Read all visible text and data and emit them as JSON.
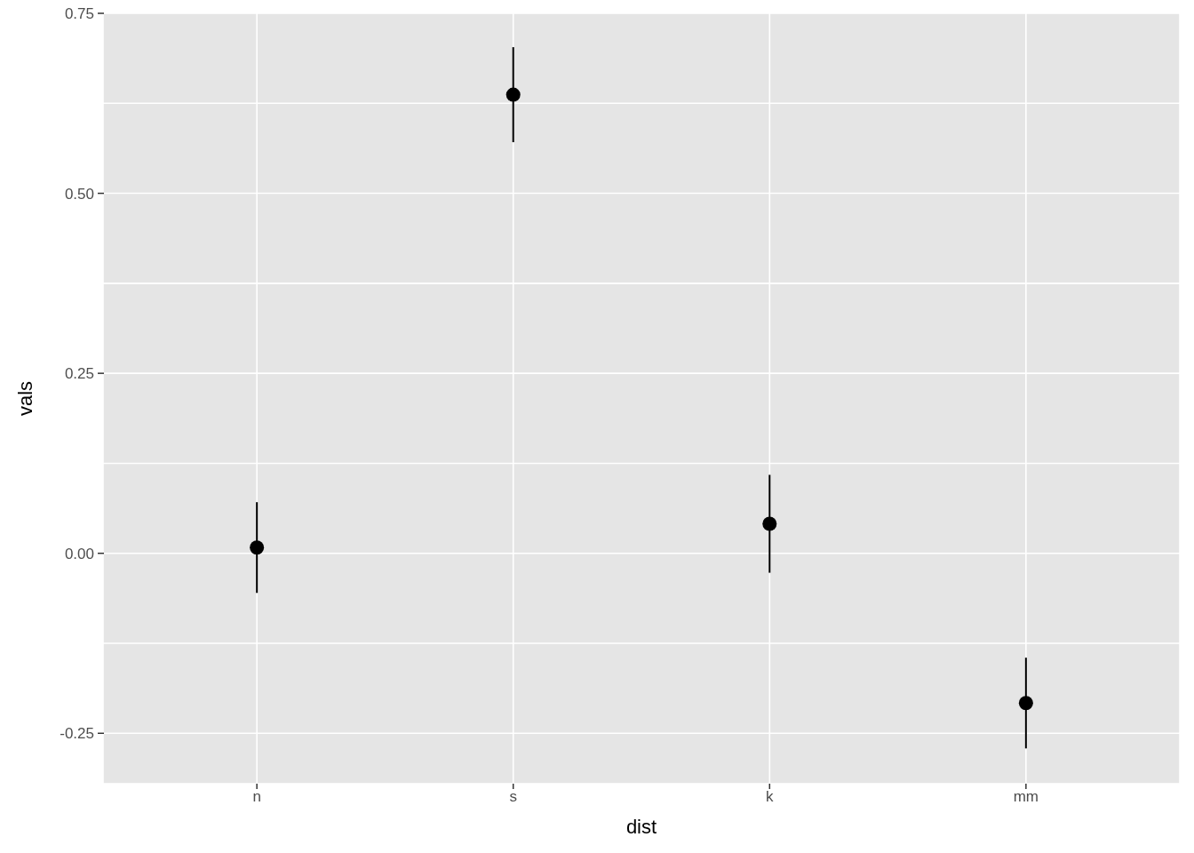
{
  "chart_data": {
    "type": "scatter",
    "xlabel": "dist",
    "ylabel": "vals",
    "categories": [
      "n",
      "s",
      "k",
      "mm"
    ],
    "values": [
      0.008,
      0.637,
      0.041,
      -0.208
    ],
    "errors": [
      0.063,
      0.066,
      0.068,
      0.063
    ],
    "color": "#000000",
    "marker": "circle",
    "grid": true,
    "ylim": [
      -0.32,
      0.75
    ],
    "yticks": [
      -0.25,
      {
        "value": -0.125,
        "label": null
      },
      {
        "value": 0,
        "label": "0.00"
      },
      {
        "value": 0.125,
        "label": null
      },
      0.25,
      {
        "value": 0.375,
        "label": null
      },
      {
        "value": 0.5,
        "label": "0.50"
      },
      {
        "value": 0.625,
        "label": null
      },
      0.75
    ]
  }
}
